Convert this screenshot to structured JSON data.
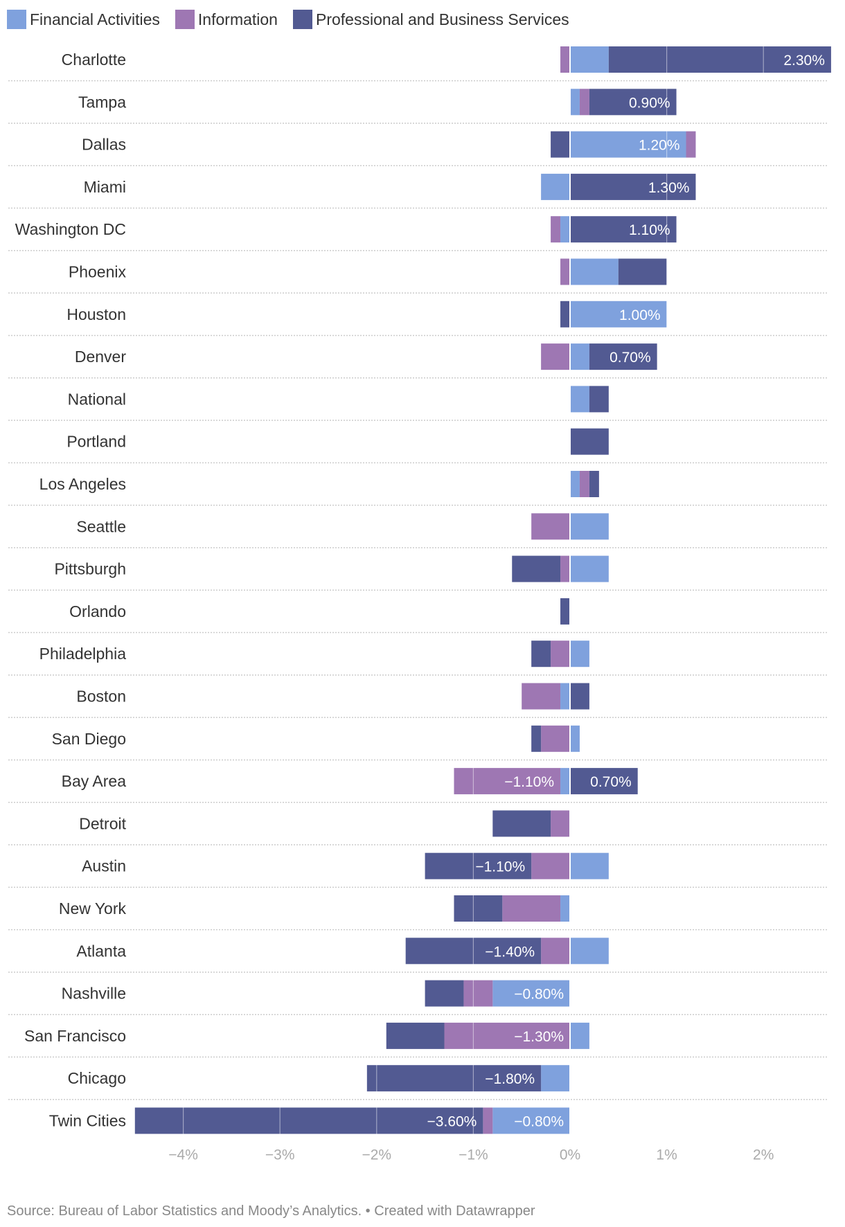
{
  "colors": {
    "Financial Activities": "#7fa1dd",
    "Information": "#9e77b3",
    "Professional and Business Services": "#525a92",
    "grid": "#d8d8d8",
    "separator": "#cccccc"
  },
  "source": "Source: Bureau of Labor Statistics and Moody’s Analytics. • Created with Datawrapper",
  "chart_data": {
    "type": "bar",
    "orientation": "horizontal-stacked-diverging",
    "xlim": [
      -4.5,
      2.7
    ],
    "ticks": [
      -4,
      -3,
      -2,
      -1,
      0,
      1,
      2
    ],
    "tick_labels": [
      "−4%",
      "−3%",
      "−2%",
      "−1%",
      "0%",
      "1%",
      "2%"
    ],
    "legend": [
      "Financial Activities",
      "Information",
      "Professional and Business Services"
    ],
    "categories": [
      "Charlotte",
      "Tampa",
      "Dallas",
      "Miami",
      "Washington DC",
      "Phoenix",
      "Houston",
      "Denver",
      "National",
      "Portland",
      "Los Angeles",
      "Seattle",
      "Pittsburgh",
      "Orlando",
      "Philadelphia",
      "Boston",
      "San Diego",
      "Bay Area",
      "Detroit",
      "Austin",
      "New York",
      "Atlanta",
      "Nashville",
      "San Francisco",
      "Chicago",
      "Twin Cities"
    ],
    "series": [
      {
        "name": "Financial Activities",
        "values": [
          0.4,
          0.1,
          1.2,
          -0.3,
          -0.1,
          0.5,
          1.0,
          0.2,
          0.2,
          0,
          0.1,
          0.4,
          0.4,
          0,
          0.2,
          -0.1,
          0.1,
          -0.1,
          0,
          0.4,
          -0.1,
          0.4,
          -0.8,
          0.2,
          -0.3,
          -0.8
        ]
      },
      {
        "name": "Information",
        "values": [
          -0.1,
          0.1,
          0.1,
          0,
          -0.1,
          -0.1,
          0,
          -0.3,
          0,
          0,
          0.1,
          -0.4,
          -0.1,
          0,
          -0.2,
          -0.4,
          -0.3,
          -1.1,
          -0.2,
          -0.4,
          -0.6,
          -0.3,
          -0.3,
          -1.3,
          0,
          -0.1
        ]
      },
      {
        "name": "Professional and Business Services",
        "values": [
          2.3,
          0.9,
          -0.2,
          1.3,
          1.1,
          0.5,
          -0.1,
          0.7,
          0.2,
          0.4,
          0.1,
          0,
          -0.5,
          -0.1,
          -0.2,
          0.2,
          -0.1,
          0.7,
          -0.6,
          -1.1,
          -0.5,
          -1.4,
          -0.4,
          -0.6,
          -1.8,
          -3.6
        ]
      }
    ],
    "value_labels": [
      {
        "category": "Charlotte",
        "series": "Professional and Business Services",
        "text": "2.30%"
      },
      {
        "category": "Tampa",
        "series": "Professional and Business Services",
        "text": "0.90%"
      },
      {
        "category": "Dallas",
        "series": "Financial Activities",
        "text": "1.20%"
      },
      {
        "category": "Miami",
        "series": "Professional and Business Services",
        "text": "1.30%"
      },
      {
        "category": "Washington DC",
        "series": "Professional and Business Services",
        "text": "1.10%"
      },
      {
        "category": "Houston",
        "series": "Financial Activities",
        "text": "1.00%"
      },
      {
        "category": "Denver",
        "series": "Professional and Business Services",
        "text": "0.70%"
      },
      {
        "category": "Bay Area",
        "series": "Information",
        "text": "−1.10%"
      },
      {
        "category": "Bay Area",
        "series": "Professional and Business Services",
        "text": "0.70%"
      },
      {
        "category": "Austin",
        "series": "Professional and Business Services",
        "text": "−1.10%"
      },
      {
        "category": "Atlanta",
        "series": "Professional and Business Services",
        "text": "−1.40%"
      },
      {
        "category": "Nashville",
        "series": "Financial Activities",
        "text": "−0.80%"
      },
      {
        "category": "San Francisco",
        "series": "Information",
        "text": "−1.30%"
      },
      {
        "category": "Chicago",
        "series": "Professional and Business Services",
        "text": "−1.80%"
      },
      {
        "category": "Twin Cities",
        "series": "Professional and Business Services",
        "text": "−3.60%"
      },
      {
        "category": "Twin Cities",
        "series": "Financial Activities",
        "text": "−0.80%"
      }
    ]
  }
}
